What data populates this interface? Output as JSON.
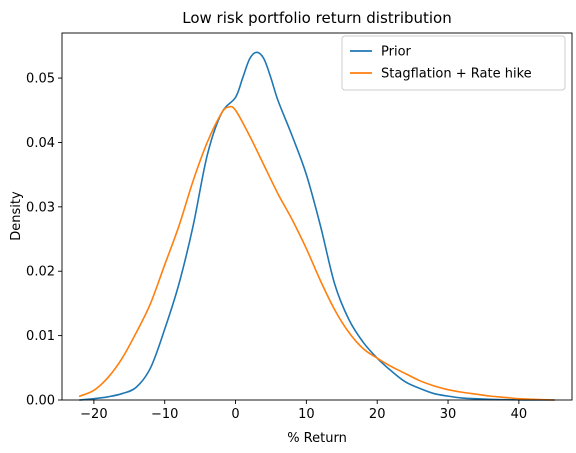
{
  "chart_data": {
    "type": "line",
    "title": "Low risk portfolio return distribution",
    "xlabel": "% Return",
    "ylabel": "Density",
    "xlim": [
      -24.5,
      47.5
    ],
    "ylim": [
      0,
      0.057
    ],
    "xticks": [
      -20,
      -10,
      0,
      10,
      20,
      30,
      40
    ],
    "yticks": [
      0.0,
      0.01,
      0.02,
      0.03,
      0.04,
      0.05
    ],
    "ytick_labels": [
      "0.00",
      "0.01",
      "0.02",
      "0.03",
      "0.04",
      "0.05"
    ],
    "grid": false,
    "legend_position": "top-right",
    "series": [
      {
        "name": "Prior",
        "color": "#1f77b4",
        "x": [
          -22,
          -20,
          -18,
          -16,
          -14,
          -12,
          -10,
          -8,
          -6,
          -4,
          -2,
          0,
          1,
          2,
          3,
          4,
          5,
          6,
          8,
          10,
          12,
          14,
          16,
          18,
          20,
          22,
          24,
          26,
          28,
          30,
          32,
          34,
          36,
          38,
          40,
          42,
          45
        ],
        "y": [
          0.0,
          0.0002,
          0.0005,
          0.001,
          0.002,
          0.005,
          0.011,
          0.018,
          0.027,
          0.038,
          0.0445,
          0.047,
          0.05,
          0.053,
          0.054,
          0.053,
          0.05,
          0.0465,
          0.041,
          0.035,
          0.027,
          0.018,
          0.0125,
          0.009,
          0.0065,
          0.0045,
          0.0028,
          0.0018,
          0.001,
          0.0006,
          0.0003,
          0.0002,
          0.0001,
          5e-05,
          2e-05,
          0.0,
          0.0
        ]
      },
      {
        "name": "Stagflation + Rate hike",
        "color": "#ff7f0e",
        "x": [
          -22,
          -20,
          -18,
          -16,
          -14,
          -12,
          -10,
          -8,
          -6,
          -4,
          -2,
          -1,
          0,
          2,
          4,
          6,
          8,
          10,
          12,
          14,
          16,
          18,
          20,
          22,
          24,
          26,
          28,
          30,
          32,
          34,
          36,
          38,
          40,
          42,
          45
        ],
        "y": [
          0.0006,
          0.0015,
          0.0035,
          0.0065,
          0.0105,
          0.015,
          0.021,
          0.027,
          0.034,
          0.04,
          0.0445,
          0.0455,
          0.045,
          0.041,
          0.0365,
          0.032,
          0.028,
          0.0235,
          0.0185,
          0.014,
          0.0105,
          0.008,
          0.0065,
          0.0052,
          0.0041,
          0.003,
          0.0022,
          0.0016,
          0.0012,
          0.0009,
          0.0006,
          0.0004,
          0.0002,
          0.0001,
          0.0
        ]
      }
    ]
  }
}
